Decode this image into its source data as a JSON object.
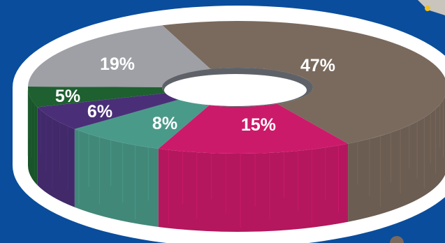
{
  "chart_data": {
    "type": "pie",
    "style": "3d-donut",
    "title": "",
    "slices": [
      {
        "label": "47%",
        "value": 47,
        "color": "#7a6a5d"
      },
      {
        "label": "15%",
        "value": 15,
        "color": "#cc1a6a"
      },
      {
        "label": "8%",
        "value": 8,
        "color": "#4a9a8a"
      },
      {
        "label": "6%",
        "value": 6,
        "color": "#4a2f78"
      },
      {
        "label": "5%",
        "value": 5,
        "color": "#1e6030"
      },
      {
        "label": "19%",
        "value": 19,
        "color": "#9ea0a6"
      }
    ]
  },
  "colors": {
    "background": "#0a4d9c",
    "card": "#ffffff",
    "hole": "#ffffff",
    "hole_rim": "#5e6268"
  }
}
